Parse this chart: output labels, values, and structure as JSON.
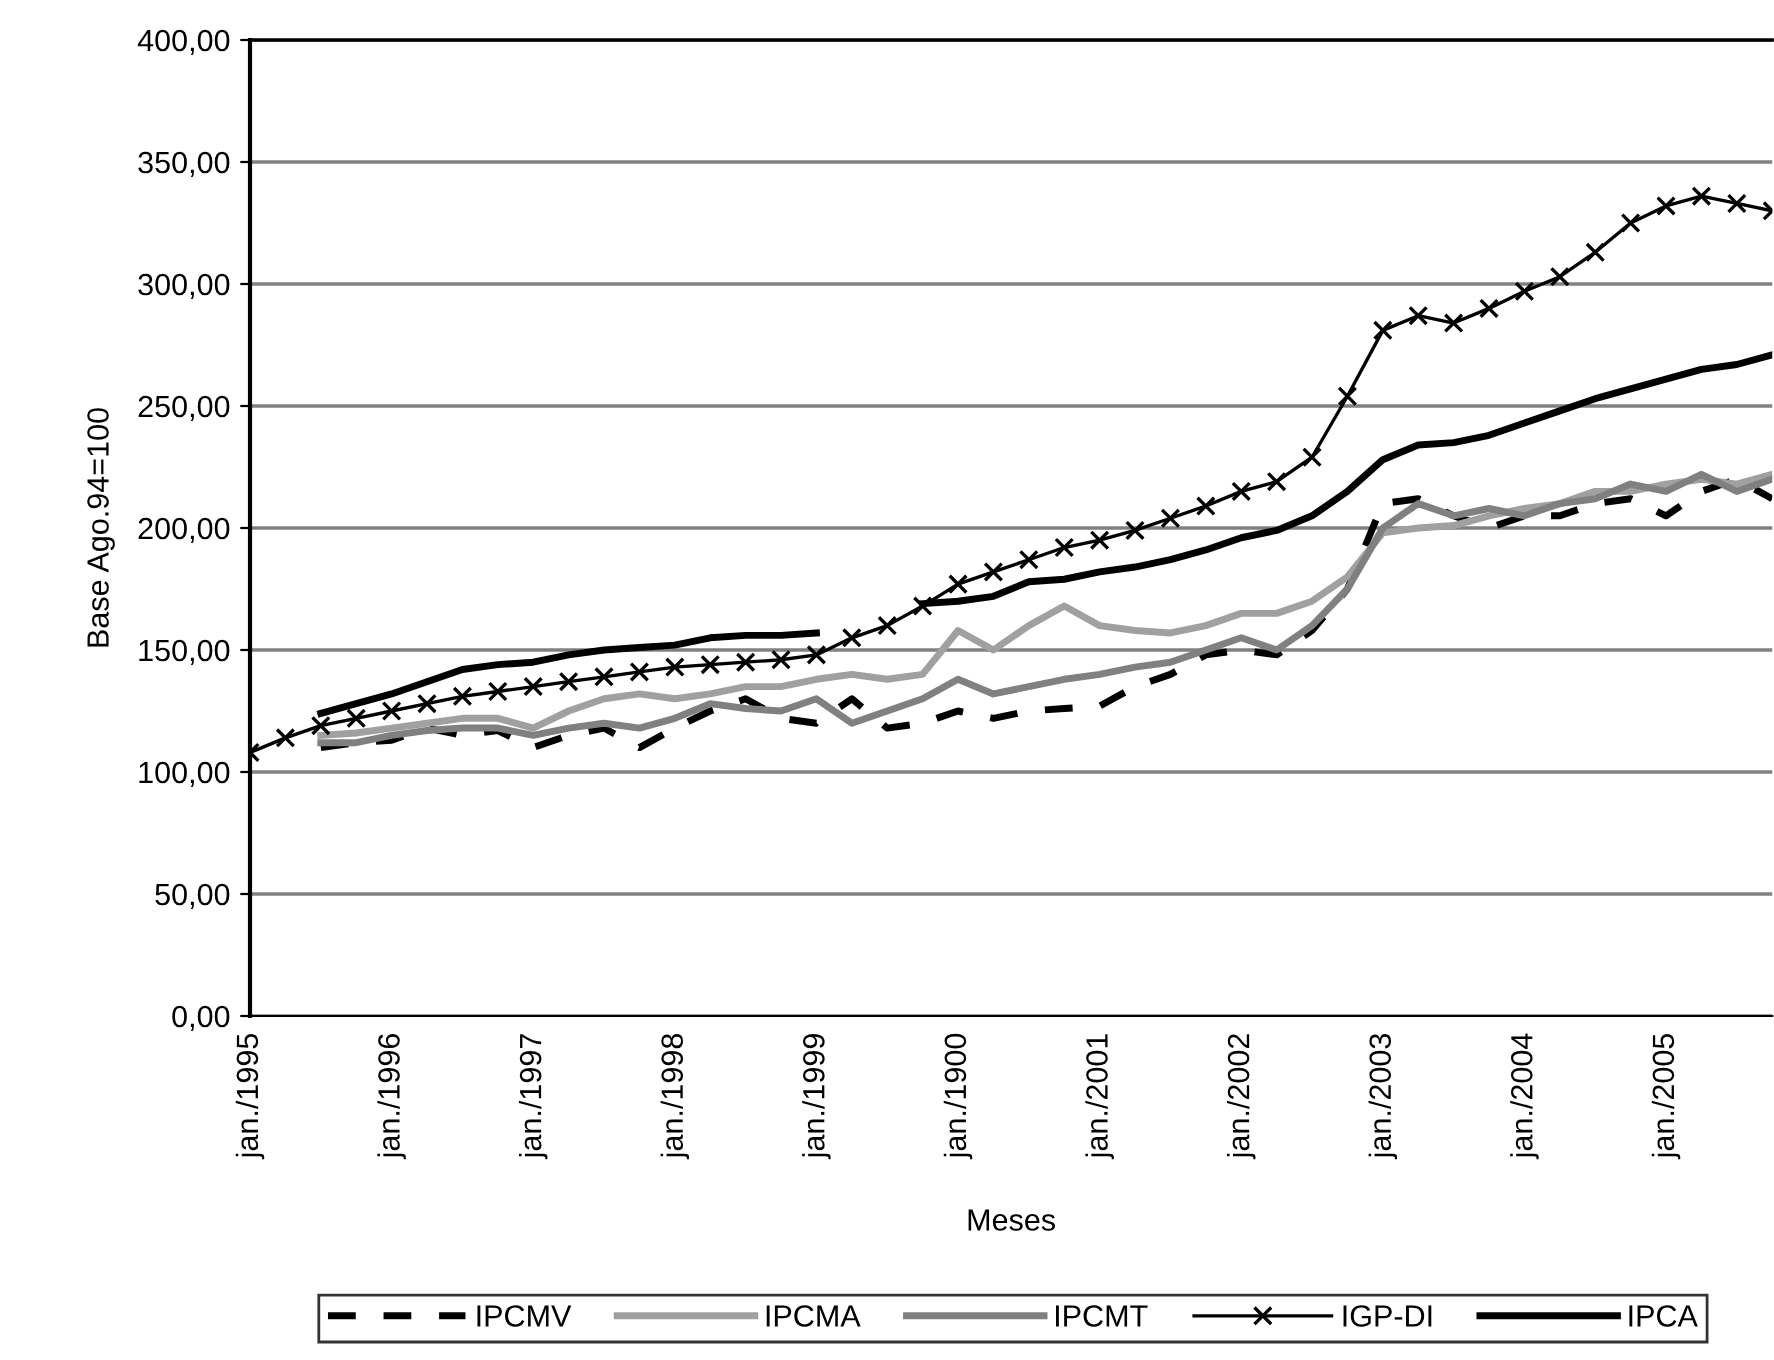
{
  "chart_data": {
    "type": "line",
    "xlabel": "Meses",
    "ylabel": "Base Ago.94=100",
    "categories": [
      "jan./1995",
      null,
      null,
      null,
      "jan./1996",
      null,
      null,
      null,
      "jan./1997",
      null,
      null,
      null,
      "jan./1998",
      null,
      null,
      null,
      "jan./1999",
      null,
      null,
      null,
      "jan./1900",
      null,
      null,
      null,
      "jan./2001",
      null,
      null,
      null,
      "jan./2002",
      null,
      null,
      null,
      "jan./2003",
      null,
      null,
      null,
      "jan./2004",
      null,
      null,
      null,
      "jan./2005",
      null,
      null,
      null
    ],
    "series": [
      {
        "name": "IPCMV",
        "color": "#000000",
        "line_style": "dashed",
        "marker": "none",
        "values": [
          null,
          null,
          110,
          112,
          113,
          118,
          115,
          117,
          110,
          115,
          118,
          110,
          118,
          125,
          130,
          122,
          120,
          130,
          118,
          120,
          125,
          122,
          125,
          126,
          127,
          135,
          140,
          148,
          150,
          148,
          158,
          175,
          210,
          212,
          205,
          200,
          205,
          205,
          210,
          212,
          205,
          215,
          220,
          212
        ]
      },
      {
        "name": "IPCMA",
        "color": "#a0a0a0",
        "line_style": "solid",
        "marker": "none",
        "values": [
          null,
          null,
          115,
          116,
          118,
          120,
          122,
          122,
          118,
          125,
          130,
          132,
          130,
          132,
          135,
          135,
          138,
          140,
          138,
          140,
          158,
          150,
          160,
          168,
          160,
          158,
          157,
          160,
          165,
          165,
          170,
          180,
          198,
          200,
          201,
          205,
          208,
          210,
          215,
          215,
          218,
          220,
          218,
          222
        ]
      },
      {
        "name": "IPCMT",
        "color": "#808080",
        "line_style": "solid",
        "marker": "none",
        "values": [
          null,
          null,
          112,
          112,
          115,
          117,
          118,
          118,
          115,
          118,
          120,
          118,
          122,
          128,
          126,
          125,
          130,
          120,
          125,
          130,
          138,
          132,
          135,
          138,
          140,
          143,
          145,
          150,
          155,
          150,
          160,
          175,
          200,
          210,
          205,
          208,
          205,
          210,
          212,
          218,
          215,
          222,
          215,
          220
        ]
      },
      {
        "name": "IGP-DI",
        "color": "#000000",
        "line_style": "solid",
        "marker": "cross",
        "values": [
          108,
          114,
          119,
          122,
          125,
          128,
          131,
          133,
          135,
          137,
          139,
          141,
          143,
          144,
          145,
          146,
          148,
          155,
          160,
          168,
          177,
          182,
          187,
          192,
          195,
          199,
          204,
          209,
          215,
          219,
          229,
          254,
          281,
          287,
          284,
          290,
          297,
          303,
          313,
          325,
          332,
          336,
          333,
          330
        ]
      },
      {
        "name": "IPCA",
        "color": "#000000",
        "line_style": "solid",
        "marker": "none",
        "values": [
          null,
          null,
          124,
          128,
          132,
          137,
          142,
          144,
          145,
          148,
          150,
          151,
          152,
          155,
          156,
          156,
          157,
          null,
          null,
          169,
          170,
          172,
          178,
          179,
          182,
          184,
          187,
          191,
          196,
          199,
          205,
          215,
          228,
          234,
          235,
          238,
          243,
          248,
          253,
          257,
          261,
          265,
          267,
          271
        ]
      }
    ],
    "ylim": [
      0,
      400
    ],
    "yticks": [
      {
        "value": 0,
        "label": "0,00"
      },
      {
        "value": 50,
        "label": "50,00"
      },
      {
        "value": 100,
        "label": "100,00"
      },
      {
        "value": 150,
        "label": "150,00"
      },
      {
        "value": 200,
        "label": "200,00"
      },
      {
        "value": 250,
        "label": "250,00"
      },
      {
        "value": 300,
        "label": "300,00"
      },
      {
        "value": 350,
        "label": "350,00"
      },
      {
        "value": 400,
        "label": "400,00"
      }
    ],
    "grid": "y",
    "legend": "bottom"
  }
}
